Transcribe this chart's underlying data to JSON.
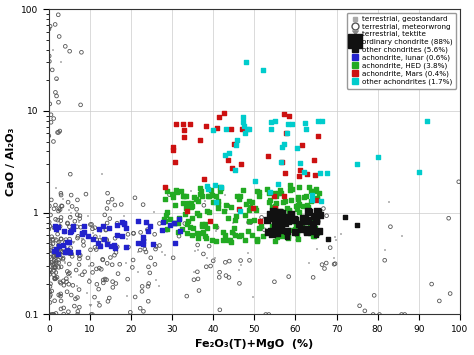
{
  "xlabel": "Fe₂O₃(T)+MgO  (%)",
  "ylabel": "CaO / Al₂O₃",
  "xlim": [
    0,
    100
  ],
  "ylim": [
    0.1,
    100
  ],
  "background": "#ffffff",
  "geo_color": "#aaaaaa",
  "met_color": "#555555",
  "tekt_color": "#888888",
  "black_color": "#111111",
  "blue_color": "#2222cc",
  "green_color": "#22aa22",
  "red_color": "#cc1111",
  "cyan_color": "#00cccc",
  "legend_labels": [
    "terrestrial, geostandard",
    "terrestrial, meteorwrong",
    "terrestrial, tektite",
    "ordinary chondrite (88%)",
    "other chondrites (5.6%)",
    "achondrite, lunar (0.6%)",
    "achondrite, HED (3.8%)",
    "achondrite, Mars (0.4%)",
    "other achondrites (1.7%)"
  ]
}
